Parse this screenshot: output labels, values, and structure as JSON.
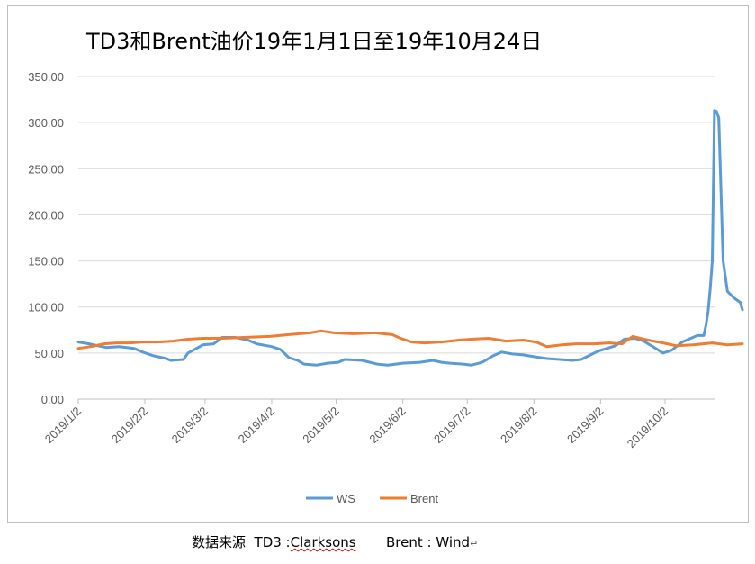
{
  "chart_data": {
    "type": "line",
    "title": "TD3和Brent油价19年1月1日至19年10月24日",
    "ylim": [
      0,
      350
    ],
    "y_ticks": [
      "0.00",
      "50.00",
      "100.00",
      "150.00",
      "200.00",
      "250.00",
      "300.00",
      "350.00"
    ],
    "x_tick_labels": [
      "2019/1/2",
      "2019/2/2",
      "2019/3/2",
      "2019/4/2",
      "2019/5/2",
      "2019/6/2",
      "2019/7/2",
      "2019/8/2",
      "2019/9/2",
      "2019/10/2"
    ],
    "x_range": [
      "2019-01-02",
      "2019-10-24"
    ],
    "grid": "horizontal",
    "legend_position": "bottom",
    "series": [
      {
        "name": "WS",
        "color": "#5b9bd5",
        "points": [
          [
            "2019-01-02",
            62
          ],
          [
            "2019-01-07",
            60
          ],
          [
            "2019-01-11",
            58
          ],
          [
            "2019-01-15",
            56
          ],
          [
            "2019-01-21",
            57
          ],
          [
            "2019-01-28",
            55
          ],
          [
            "2019-02-01",
            51
          ],
          [
            "2019-02-06",
            47
          ],
          [
            "2019-02-12",
            44
          ],
          [
            "2019-02-14",
            42
          ],
          [
            "2019-02-20",
            43
          ],
          [
            "2019-02-22",
            50
          ],
          [
            "2019-02-26",
            55
          ],
          [
            "2019-03-01",
            59
          ],
          [
            "2019-03-06",
            60
          ],
          [
            "2019-03-10",
            67
          ],
          [
            "2019-03-16",
            67
          ],
          [
            "2019-03-22",
            64
          ],
          [
            "2019-03-26",
            60
          ],
          [
            "2019-04-02",
            57
          ],
          [
            "2019-04-06",
            54
          ],
          [
            "2019-04-10",
            45
          ],
          [
            "2019-04-14",
            42
          ],
          [
            "2019-04-17",
            38
          ],
          [
            "2019-04-23",
            37
          ],
          [
            "2019-04-28",
            39
          ],
          [
            "2019-05-03",
            40
          ],
          [
            "2019-05-06",
            43
          ],
          [
            "2019-05-14",
            42
          ],
          [
            "2019-05-21",
            38
          ],
          [
            "2019-05-26",
            37
          ],
          [
            "2019-06-02",
            39
          ],
          [
            "2019-06-10",
            40
          ],
          [
            "2019-06-16",
            42
          ],
          [
            "2019-06-20",
            40
          ],
          [
            "2019-06-24",
            39
          ],
          [
            "2019-06-30",
            38
          ],
          [
            "2019-07-04",
            37
          ],
          [
            "2019-07-09",
            40
          ],
          [
            "2019-07-14",
            47
          ],
          [
            "2019-07-18",
            51
          ],
          [
            "2019-07-23",
            49
          ],
          [
            "2019-07-28",
            48
          ],
          [
            "2019-08-02",
            46
          ],
          [
            "2019-08-08",
            44
          ],
          [
            "2019-08-14",
            43
          ],
          [
            "2019-08-20",
            42
          ],
          [
            "2019-08-24",
            43
          ],
          [
            "2019-08-30",
            50
          ],
          [
            "2019-09-02",
            53
          ],
          [
            "2019-09-05",
            55
          ],
          [
            "2019-09-09",
            58
          ],
          [
            "2019-09-13",
            65
          ],
          [
            "2019-09-18",
            66
          ],
          [
            "2019-09-22",
            63
          ],
          [
            "2019-09-27",
            56
          ],
          [
            "2019-10-01",
            50
          ],
          [
            "2019-10-05",
            53
          ],
          [
            "2019-10-10",
            62
          ],
          [
            "2019-10-14",
            66
          ],
          [
            "2019-10-17",
            69
          ],
          [
            "2019-10-20",
            69
          ],
          [
            "2019-10-21",
            80
          ],
          [
            "2019-10-22",
            95
          ],
          [
            "2019-10-23",
            120
          ],
          [
            "2019-10-24",
            150
          ],
          [
            "2019-10-25",
            313
          ],
          [
            "2019-10-26",
            312
          ],
          [
            "2019-10-27",
            305
          ],
          [
            "2019-10-29",
            150
          ],
          [
            "2019-10-31",
            117
          ],
          [
            "2019-11-03",
            110
          ],
          [
            "2019-11-06",
            105
          ],
          [
            "2019-11-07",
            97
          ]
        ]
      },
      {
        "name": "Brent",
        "color": "#ed7d31",
        "points": [
          [
            "2019-01-02",
            55
          ],
          [
            "2019-01-08",
            57
          ],
          [
            "2019-01-14",
            60
          ],
          [
            "2019-01-20",
            61
          ],
          [
            "2019-01-26",
            61
          ],
          [
            "2019-02-01",
            62
          ],
          [
            "2019-02-08",
            62
          ],
          [
            "2019-02-15",
            63
          ],
          [
            "2019-02-22",
            65
          ],
          [
            "2019-03-01",
            66
          ],
          [
            "2019-03-10",
            66
          ],
          [
            "2019-03-20",
            67
          ],
          [
            "2019-04-01",
            68
          ],
          [
            "2019-04-10",
            70
          ],
          [
            "2019-04-20",
            72
          ],
          [
            "2019-04-25",
            74
          ],
          [
            "2019-05-01",
            72
          ],
          [
            "2019-05-10",
            71
          ],
          [
            "2019-05-20",
            72
          ],
          [
            "2019-05-28",
            70
          ],
          [
            "2019-06-01",
            66
          ],
          [
            "2019-06-06",
            62
          ],
          [
            "2019-06-12",
            61
          ],
          [
            "2019-06-20",
            62
          ],
          [
            "2019-06-28",
            64
          ],
          [
            "2019-07-04",
            65
          ],
          [
            "2019-07-12",
            66
          ],
          [
            "2019-07-20",
            63
          ],
          [
            "2019-07-28",
            64
          ],
          [
            "2019-08-03",
            62
          ],
          [
            "2019-08-08",
            57
          ],
          [
            "2019-08-15",
            59
          ],
          [
            "2019-08-22",
            60
          ],
          [
            "2019-08-30",
            60
          ],
          [
            "2019-09-06",
            61
          ],
          [
            "2019-09-12",
            60
          ],
          [
            "2019-09-17",
            68
          ],
          [
            "2019-09-24",
            64
          ],
          [
            "2019-10-01",
            61
          ],
          [
            "2019-10-07",
            58
          ],
          [
            "2019-10-15",
            59
          ],
          [
            "2019-10-24",
            61
          ],
          [
            "2019-10-31",
            59
          ],
          [
            "2019-11-07",
            60
          ]
        ]
      }
    ]
  },
  "source_note": {
    "prefix": "数据来源  TD3 :",
    "td3_source": "Clarksons",
    "middle": "       Brent : ",
    "brent_source": "Wind",
    "return_mark": "↵"
  }
}
